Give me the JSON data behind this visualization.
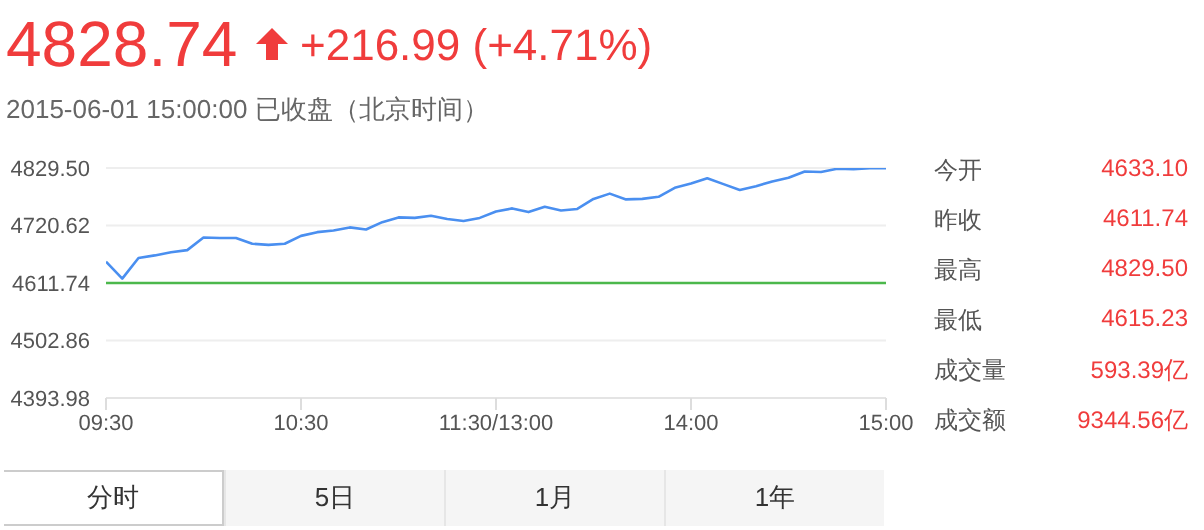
{
  "chart_data": {
    "type": "line",
    "title": "4828.74",
    "subtitle": "2015-06-01 15:00:00 已收盘（北京时间）",
    "annotations": [
      "+216.99 (+4.71%)",
      "今开",
      "4633.10",
      "昨收",
      "4611.74",
      "最高",
      "4829.50",
      "最低",
      "4615.23",
      "成交量",
      "593.39亿",
      "成交额",
      "9344.56亿",
      "分时",
      "5日",
      "1月",
      "1年"
    ],
    "categories": [
      "09:30",
      null,
      null,
      null,
      null,
      null,
      null,
      null,
      null,
      null,
      null,
      null,
      "10:30",
      null,
      null,
      null,
      null,
      null,
      null,
      null,
      null,
      null,
      null,
      null,
      "11:30/13:00",
      null,
      null,
      null,
      null,
      null,
      null,
      null,
      null,
      null,
      null,
      null,
      "14:00",
      null,
      null,
      null,
      null,
      null,
      null,
      null,
      null,
      null,
      null,
      null,
      "15:00"
    ],
    "series": [
      {
        "color": "#4a8ff0",
        "values": [
          4652,
          4620,
          4659,
          4664,
          4670,
          4674,
          4698,
          4697,
          4697,
          4686,
          4684,
          4686,
          4701,
          4708,
          4711,
          4717,
          4713,
          4727,
          4736,
          4735,
          4739,
          4733,
          4729,
          4735,
          4747,
          4753,
          4746,
          4756,
          4749,
          4752,
          4771,
          4781,
          4770,
          4771,
          4775,
          4792,
          4800,
          4810,
          4799,
          4788,
          4795,
          4804,
          4811,
          4823,
          4822,
          4828,
          4827,
          4829,
          4829
        ]
      }
    ],
    "ylim": [
      4393.98,
      4829.5
    ],
    "yticks": [
      4393.98,
      4502.86,
      4611.74,
      4720.62,
      {
        "value": 4829.5,
        "label": "4829.50"
      }
    ],
    "ref_lines": [
      {
        "axis": "y",
        "value": 4611.74,
        "color": "#4cb84c"
      }
    ],
    "grid": "y"
  }
}
